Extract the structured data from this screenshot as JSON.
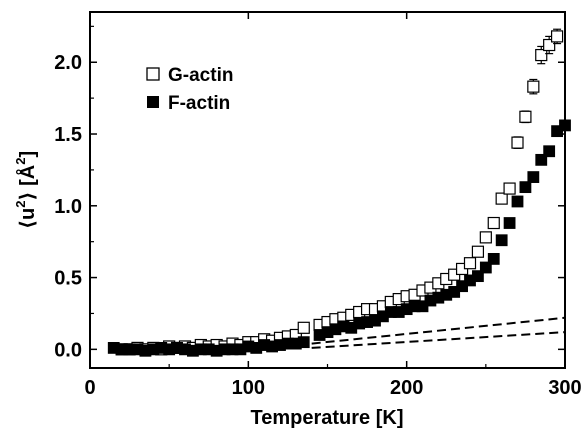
{
  "chart_data": {
    "type": "scatter",
    "xlabel": "Temperature [K]",
    "ylabel": {
      "prefix": "⟨u",
      "exp1": "2",
      "mid": "⟩ [Å",
      "exp2": "2",
      "suffix": "]"
    },
    "xlim": [
      0,
      300
    ],
    "ylim": [
      -0.13,
      2.35
    ],
    "x_ticks": [
      0,
      100,
      200,
      300
    ],
    "y_ticks": [
      0.0,
      0.5,
      1.0,
      1.5,
      2.0
    ],
    "x_tick_labels": [
      "0",
      "100",
      "200",
      "300"
    ],
    "y_tick_labels": [
      "0.0",
      "0.5",
      "1.0",
      "1.5",
      "2.0"
    ],
    "grid": false,
    "legend_position": "top-left",
    "series": [
      {
        "name": "G-actin",
        "marker": "open-square",
        "color": "#000000",
        "x": [
          20,
          25,
          30,
          35,
          40,
          45,
          50,
          55,
          60,
          65,
          70,
          75,
          80,
          85,
          90,
          95,
          100,
          105,
          110,
          115,
          120,
          125,
          130,
          135,
          145,
          150,
          155,
          160,
          165,
          170,
          175,
          180,
          185,
          190,
          195,
          200,
          205,
          210,
          215,
          220,
          225,
          230,
          235,
          240,
          245,
          250,
          255,
          260,
          265,
          270,
          275,
          280,
          285,
          290,
          295
        ],
        "y": [
          0.0,
          0.0,
          0.01,
          0.0,
          0.01,
          0.0,
          0.02,
          0.01,
          0.02,
          0.01,
          0.03,
          0.02,
          0.03,
          0.02,
          0.04,
          0.03,
          0.05,
          0.05,
          0.07,
          0.06,
          0.08,
          0.09,
          0.1,
          0.15,
          0.17,
          0.19,
          0.21,
          0.22,
          0.24,
          0.26,
          0.28,
          0.28,
          0.3,
          0.33,
          0.35,
          0.37,
          0.38,
          0.41,
          0.43,
          0.46,
          0.49,
          0.52,
          0.56,
          0.6,
          0.68,
          0.78,
          0.88,
          1.05,
          1.12,
          1.44,
          1.62,
          1.83,
          2.05,
          2.12,
          2.18
        ],
        "err": [
          0,
          0,
          0,
          0,
          0,
          0,
          0,
          0,
          0,
          0,
          0,
          0,
          0,
          0,
          0,
          0,
          0,
          0,
          0,
          0,
          0,
          0,
          0,
          0,
          0,
          0,
          0,
          0,
          0,
          0,
          0,
          0,
          0,
          0,
          0,
          0,
          0,
          0,
          0,
          0,
          0,
          0,
          0,
          0,
          0,
          0,
          0,
          0,
          0,
          0.04,
          0.04,
          0.05,
          0.06,
          0.06,
          0.05
        ]
      },
      {
        "name": "F-actin",
        "marker": "filled-square",
        "color": "#000000",
        "x": [
          15,
          20,
          25,
          30,
          35,
          40,
          45,
          50,
          55,
          60,
          65,
          70,
          75,
          80,
          85,
          90,
          95,
          100,
          105,
          110,
          115,
          120,
          125,
          130,
          135,
          145,
          150,
          155,
          160,
          165,
          170,
          175,
          180,
          185,
          190,
          195,
          200,
          205,
          210,
          215,
          220,
          225,
          230,
          235,
          240,
          245,
          250,
          255,
          260,
          265,
          270,
          275,
          280,
          285,
          290,
          295,
          300
        ],
        "y": [
          0.01,
          0.0,
          0.0,
          0.0,
          -0.01,
          0.0,
          0.01,
          0.0,
          0.01,
          0.0,
          -0.01,
          0.0,
          0.0,
          -0.01,
          0.0,
          0.0,
          0.0,
          0.02,
          0.01,
          0.03,
          0.02,
          0.03,
          0.04,
          0.04,
          0.05,
          0.1,
          0.12,
          0.14,
          0.16,
          0.15,
          0.18,
          0.19,
          0.2,
          0.23,
          0.26,
          0.26,
          0.28,
          0.3,
          0.3,
          0.34,
          0.36,
          0.38,
          0.4,
          0.44,
          0.48,
          0.51,
          0.57,
          0.63,
          0.76,
          0.88,
          1.03,
          1.13,
          1.2,
          1.32,
          1.38,
          1.52,
          1.56
        ],
        "err": []
      }
    ],
    "dashed_lines": [
      {
        "x": [
          140,
          300
        ],
        "y": [
          0.04,
          0.22
        ]
      },
      {
        "x": [
          140,
          300
        ],
        "y": [
          0.01,
          0.12
        ]
      }
    ]
  }
}
